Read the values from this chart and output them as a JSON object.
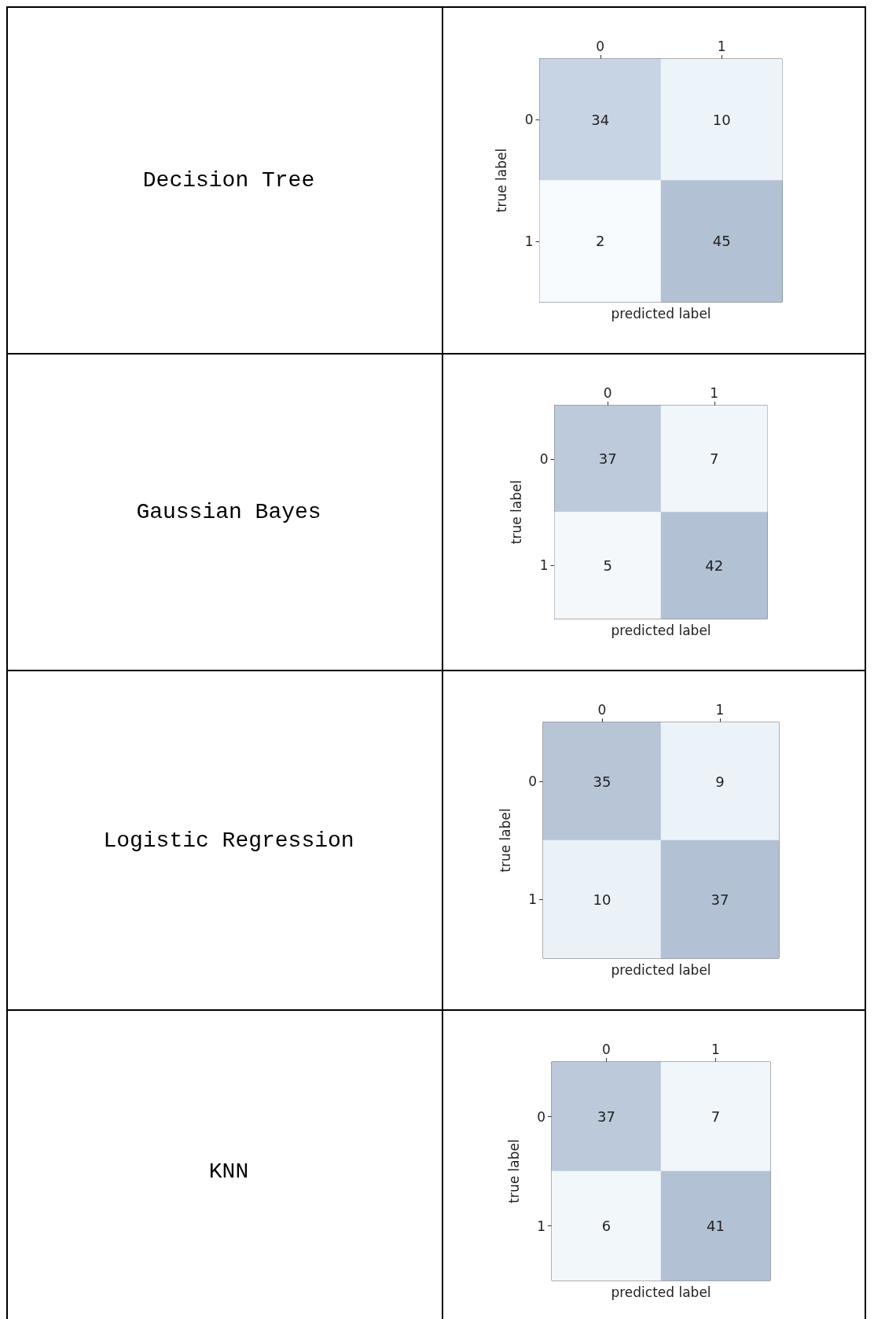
{
  "chart_data": [
    {
      "type": "heatmap",
      "annotations": [
        "Decision Tree"
      ],
      "categories": [
        "0",
        "1"
      ],
      "y_categories": [
        "0",
        "1"
      ],
      "cells": [
        [
          34,
          10
        ],
        [
          2,
          45
        ]
      ],
      "xlabel": "predicted label",
      "ylabel": "true label",
      "data_labels": true
    },
    {
      "type": "heatmap",
      "annotations": [
        "Gaussian Bayes"
      ],
      "categories": [
        "0",
        "1"
      ],
      "y_categories": [
        "0",
        "1"
      ],
      "cells": [
        [
          37,
          7
        ],
        [
          5,
          42
        ]
      ],
      "xlabel": "predicted label",
      "ylabel": "true label",
      "data_labels": true
    },
    {
      "type": "heatmap",
      "annotations": [
        "Logistic Regression"
      ],
      "categories": [
        "0",
        "1"
      ],
      "y_categories": [
        "0",
        "1"
      ],
      "cells": [
        [
          35,
          9
        ],
        [
          10,
          37
        ]
      ],
      "xlabel": "predicted label",
      "ylabel": "true label",
      "data_labels": true
    },
    {
      "type": "heatmap",
      "annotations": [
        "KNN"
      ],
      "categories": [
        "0",
        "1"
      ],
      "y_categories": [
        "0",
        "1"
      ],
      "cells": [
        [
          37,
          7
        ],
        [
          6,
          41
        ]
      ],
      "xlabel": "predicted label",
      "ylabel": "true label",
      "data_labels": true
    }
  ]
}
